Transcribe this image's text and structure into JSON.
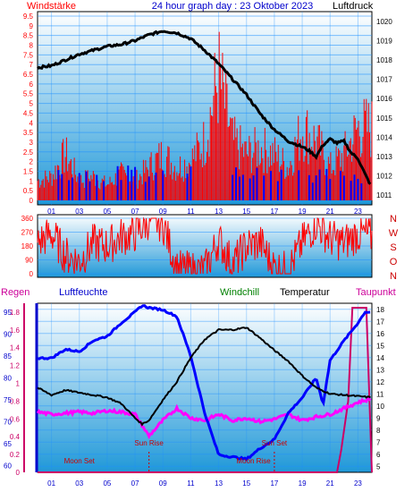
{
  "chart_data": [
    {
      "type": "line",
      "title": "24 hour graph day : 23 Oktober 2023",
      "left_axis_label": "Windstärke",
      "right_axis_label": "Luftdruck",
      "x_ticks": [
        "01",
        "03",
        "05",
        "07",
        "09",
        "11",
        "13",
        "15",
        "17",
        "19",
        "21",
        "23"
      ],
      "y_left_ticks": [
        "0",
        "0.5",
        "1",
        "1.5",
        "2",
        "2.5",
        "3",
        "3.5",
        "4",
        "4.5",
        "5",
        "5.5",
        "6",
        "6.5",
        "7",
        "7.5",
        "8",
        "8.5",
        "9",
        "9.5"
      ],
      "y_left_range": [
        0,
        9.5
      ],
      "y_right_ticks": [
        "1011",
        "1012",
        "1013",
        "1014",
        "1015",
        "1016",
        "1017",
        "1018",
        "1019",
        "1020"
      ],
      "y_right_range": [
        1010.5,
        1020.5
      ],
      "series": [
        {
          "key": "pressure",
          "axis": "right",
          "color": "#000000",
          "x": [
            0,
            1,
            2,
            3,
            4,
            5,
            6,
            7,
            8,
            9,
            10,
            11,
            12,
            13,
            14,
            15,
            16,
            17,
            18,
            19,
            19.5,
            20,
            20.5,
            21,
            21.5,
            22,
            22.5,
            23,
            23.5,
            24
          ],
          "values": [
            1017.6,
            1017.7,
            1018.0,
            1018.3,
            1018.5,
            1018.7,
            1018.8,
            1019.0,
            1019.3,
            1019.5,
            1019.4,
            1019.1,
            1018.5,
            1017.8,
            1017.0,
            1016.2,
            1015.2,
            1014.4,
            1013.8,
            1013.5,
            1013.3,
            1013.0,
            1013.6,
            1013.9,
            1013.7,
            1013.8,
            1013.2,
            1012.9,
            1012.1,
            1011.4
          ]
        },
        {
          "key": "wind_speed",
          "axis": "left",
          "color": "#ff0000",
          "style": "bars",
          "x": [
            0,
            1,
            2,
            3,
            4,
            5,
            6,
            7,
            8,
            9,
            10,
            11,
            12,
            13,
            14,
            15,
            16,
            17,
            18,
            19,
            20,
            21,
            22,
            23,
            24
          ],
          "values": [
            1.5,
            1.8,
            3.5,
            1.5,
            1.8,
            1.2,
            2.0,
            1.5,
            2.5,
            3.5,
            2.5,
            3.0,
            4.5,
            9.5,
            4.5,
            3.5,
            4.0,
            3.5,
            2.5,
            5.5,
            4.5,
            2.5,
            3.5,
            5.5,
            5.5
          ]
        },
        {
          "key": "wind_gust",
          "axis": "left",
          "color": "#0000ff",
          "style": "bars",
          "x": [
            0,
            2,
            4,
            6,
            8,
            10,
            12,
            14,
            16,
            18,
            20,
            22,
            24
          ],
          "values": [
            1.5,
            1.8,
            1.8,
            1.8,
            1.8,
            1.8,
            1.8,
            1.8,
            1.8,
            1.8,
            1.8,
            1.8,
            1.5
          ]
        }
      ]
    },
    {
      "type": "line",
      "y_ticks": [
        "0",
        "90",
        "180",
        "270",
        "360"
      ],
      "y_range": [
        0,
        360
      ],
      "compass_labels": [
        "N",
        "W",
        "S",
        "O",
        "N"
      ],
      "series": [
        {
          "key": "wind_direction",
          "color": "#ff0000",
          "x": [
            0,
            1,
            2,
            3,
            4,
            5,
            6,
            7,
            8,
            9,
            10,
            11,
            12,
            13,
            14,
            15,
            16,
            17,
            18,
            19,
            20,
            21,
            22,
            23,
            24
          ],
          "values": [
            200,
            260,
            120,
            80,
            200,
            180,
            240,
            260,
            350,
            330,
            30,
            20,
            20,
            220,
            60,
            180,
            200,
            40,
            20,
            200,
            330,
            230,
            200,
            260,
            240
          ]
        }
      ]
    },
    {
      "type": "line",
      "legend": [
        "Regen",
        "Luftfeuchte",
        "Windchill",
        "Temperatur",
        "Taupunkt"
      ],
      "legend_colors": [
        "#cc0099",
        "#0000cc",
        "#008000",
        "#000000",
        "#cc0099"
      ],
      "y_rain_ticks": [
        "0",
        "0.2",
        "0.4",
        "0.6",
        "0.8",
        "1",
        "1.2",
        "1.4",
        "1.6",
        "1.8"
      ],
      "y_rain_range": [
        0,
        1.9
      ],
      "y_humidity_ticks": [
        "60",
        "65",
        "70",
        "75",
        "80",
        "85",
        "90",
        "95"
      ],
      "y_humidity_range": [
        58.5,
        97
      ],
      "y_temperature_ticks": [
        "5",
        "6",
        "7",
        "8",
        "9",
        "10",
        "11",
        "12",
        "13",
        "14",
        "15",
        "16",
        "17",
        "18"
      ],
      "y_temperature_range": [
        4.5,
        18.5
      ],
      "annotations": [
        "Moon Set",
        "Sun Rise",
        "Sun Set",
        "Moon Rise"
      ],
      "series": [
        {
          "key": "humidity",
          "axis": "humidity",
          "color": "#0000ff",
          "x": [
            0,
            1,
            2,
            3,
            4,
            5,
            6,
            7,
            7.5,
            8,
            9,
            10,
            11,
            12,
            13,
            14,
            15,
            16,
            17,
            18,
            19,
            20,
            20.5,
            21,
            22,
            23,
            23.5,
            24
          ],
          "values": [
            84.5,
            84.5,
            86.5,
            86.0,
            88.5,
            89.5,
            92.5,
            95.0,
            96.5,
            96.0,
            95.5,
            94.0,
            85.0,
            72.0,
            62.5,
            62.0,
            61.5,
            64.0,
            66.0,
            72.0,
            75.5,
            80.0,
            74.0,
            84.0,
            88.5,
            92.5,
            95.0,
            95.0
          ]
        },
        {
          "key": "temperature",
          "axis": "temperature",
          "color": "#000000",
          "x": [
            0,
            1,
            2,
            3,
            4,
            5,
            6,
            7,
            7.5,
            8,
            9,
            10,
            11,
            12,
            13,
            14,
            15,
            16,
            17,
            18,
            19,
            20,
            21,
            22,
            23,
            24
          ],
          "values": [
            11.5,
            10.9,
            11.3,
            11.1,
            10.9,
            10.7,
            10.2,
            9.0,
            8.5,
            8.8,
            10.5,
            12.0,
            14.0,
            15.5,
            16.3,
            16.3,
            16.5,
            15.6,
            14.6,
            13.7,
            12.5,
            11.5,
            11.0,
            10.9,
            10.8,
            10.7
          ]
        },
        {
          "key": "dew_point",
          "axis": "temperature",
          "color": "#ff00ff",
          "x": [
            0,
            1,
            2,
            3,
            4,
            5,
            6,
            7,
            8,
            9,
            10,
            11,
            12,
            13,
            14,
            15,
            16,
            17,
            18,
            19,
            20,
            21,
            22,
            23,
            24
          ],
          "values": [
            9.5,
            9.3,
            9.4,
            9.5,
            9.4,
            9.6,
            9.5,
            9.3,
            7.5,
            8.8,
            9.8,
            9.0,
            8.8,
            9.3,
            8.8,
            9.0,
            8.7,
            8.9,
            9.3,
            8.8,
            9.1,
            9.3,
            9.8,
            10.3,
            10.6
          ]
        },
        {
          "key": "rain",
          "axis": "rain",
          "color": "#cc0066",
          "x": [
            0,
            21.5,
            21.8,
            22.3,
            22.6,
            23.6,
            24
          ],
          "values": [
            0,
            0,
            0.25,
            0.8,
            1.85,
            1.85,
            0
          ]
        }
      ]
    }
  ],
  "colors": {
    "grid_blue": "#1e90ff",
    "sky_top": "#ffffff",
    "sky_bottom": "#1f98d8",
    "red": "#ff0000",
    "blue": "#0000ff"
  }
}
